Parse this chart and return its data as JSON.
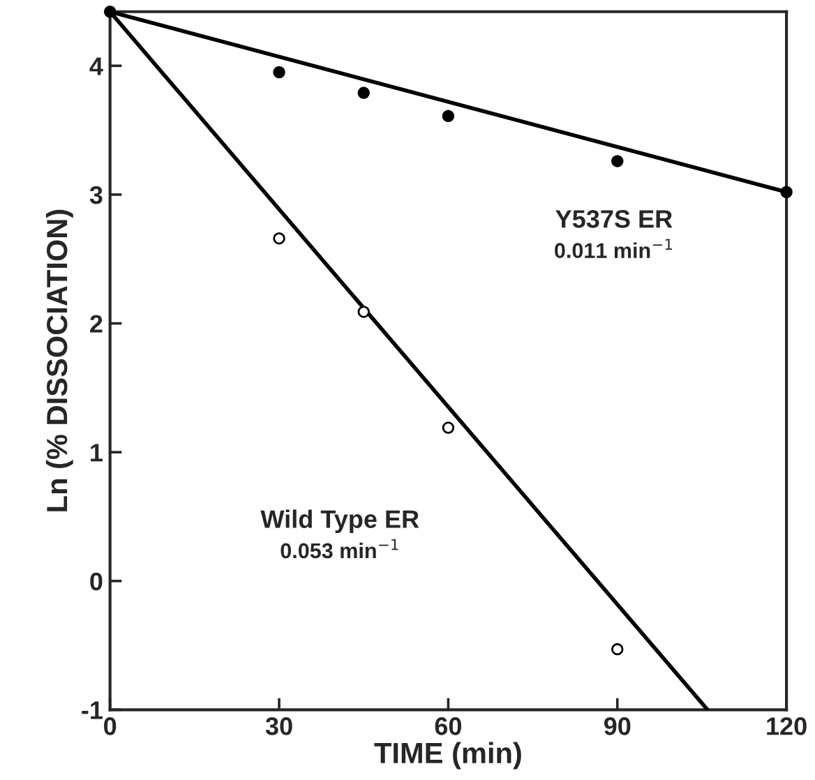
{
  "chart_data": {
    "type": "scatter",
    "xlabel": "TIME (min)",
    "ylabel": "Ln (% DISSOCIATION)",
    "xlim": [
      0,
      120
    ],
    "ylim": [
      -1,
      4.42
    ],
    "xticks": [
      0,
      30,
      60,
      90,
      120
    ],
    "yticks": [
      -1,
      0,
      1,
      2,
      3,
      4
    ],
    "grid": false,
    "series": [
      {
        "color": "#000000",
        "marker": "circle",
        "x": [
          0,
          30,
          45,
          60,
          90,
          120
        ],
        "values": [
          4.42,
          3.95,
          3.79,
          3.61,
          3.26,
          3.02
        ]
      },
      {
        "color": "#ffffff",
        "marker": "circle",
        "x": [
          30,
          45,
          60,
          90
        ],
        "values": [
          2.66,
          2.09,
          1.19,
          -0.53
        ]
      },
      {
        "type": "line",
        "color": "#000000",
        "x": [
          0,
          120
        ],
        "values": [
          4.42,
          3.02
        ]
      },
      {
        "type": "line",
        "color": "#000000",
        "x": [
          0,
          106
        ],
        "values": [
          4.42,
          -1
        ]
      }
    ],
    "annotations": [
      "Y537S ER",
      "0.011 min$^{−1}$",
      "Wild Type ER",
      "0.053 min$^{−1}$"
    ]
  }
}
